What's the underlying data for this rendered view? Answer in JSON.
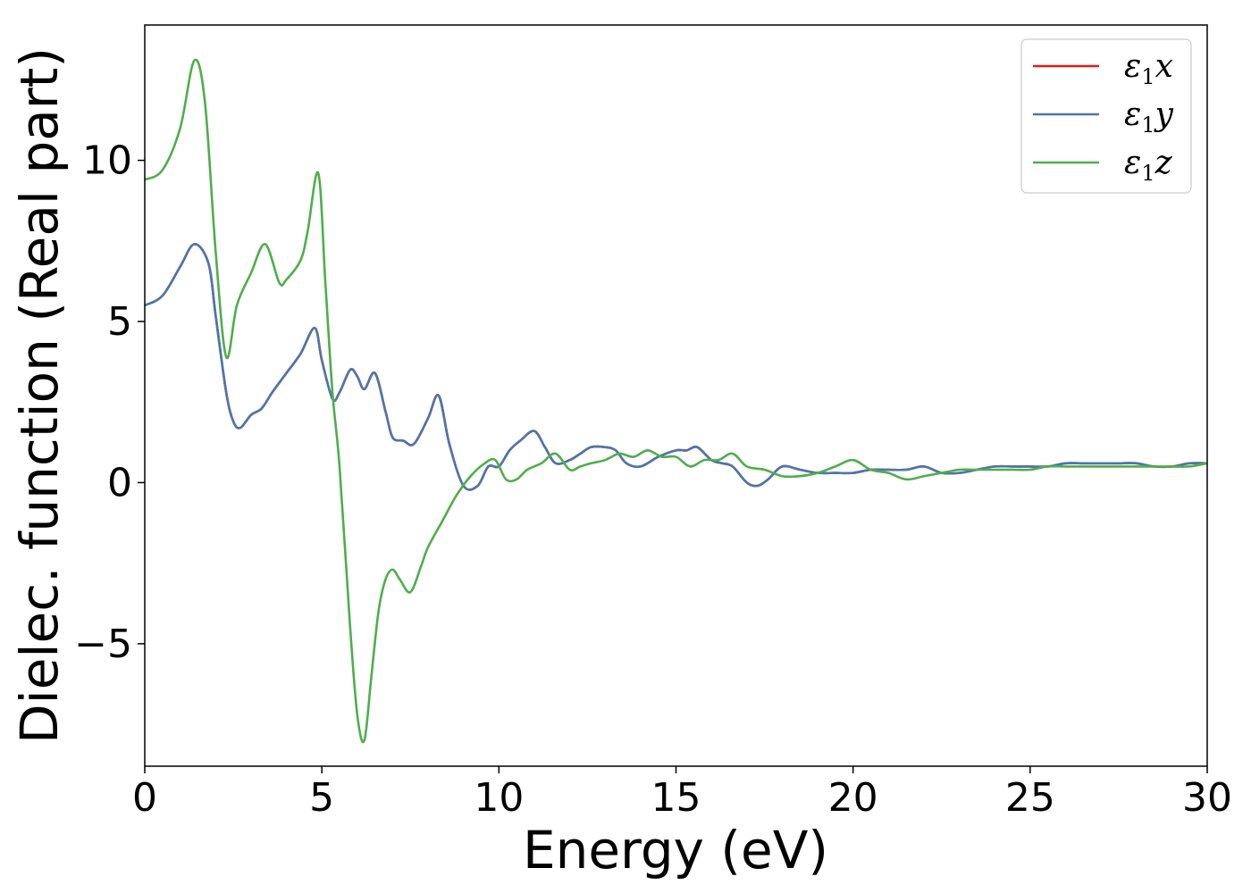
{
  "chart_data": {
    "type": "line",
    "xlabel": "Energy (eV)",
    "ylabel": "Dielec. function (Real part)",
    "xlim": [
      0,
      30
    ],
    "ylim": [
      -8.8,
      14.2
    ],
    "x_ticks": [
      0,
      5,
      10,
      15,
      20,
      25,
      30
    ],
    "y_ticks": [
      -5,
      0,
      5,
      10
    ],
    "x_tick_labels": [
      "0",
      "5",
      "10",
      "15",
      "20",
      "25",
      "30"
    ],
    "y_tick_labels": [
      "−5",
      "0",
      "5",
      "10"
    ],
    "grid": false,
    "legend_position": "top-right",
    "series": [
      {
        "name": "ε1x",
        "legend_main": "ε",
        "legend_sub": "1",
        "legend_var": "x",
        "color": "#e41a1c",
        "x": [
          0,
          0.5,
          1.0,
          1.4,
          1.8,
          2.0,
          2.3,
          2.5,
          2.7,
          3.0,
          3.3,
          3.6,
          4.0,
          4.4,
          4.8,
          5.0,
          5.3,
          5.5,
          5.8,
          6.0,
          6.2,
          6.5,
          6.8,
          7.0,
          7.3,
          7.6,
          8.0,
          8.3,
          8.6,
          9.0,
          9.4,
          9.7,
          10.0,
          10.3,
          10.6,
          11.0,
          11.3,
          11.6,
          12.0,
          12.3,
          12.6,
          13.0,
          13.3,
          13.6,
          14.0,
          14.5,
          15.0,
          15.3,
          15.6,
          16.0,
          16.3,
          16.6,
          17.0,
          17.3,
          17.6,
          18.0,
          18.5,
          19.0,
          19.5,
          20.0,
          20.5,
          21.0,
          21.5,
          22.0,
          22.5,
          23.0,
          23.5,
          24.0,
          24.5,
          25.0,
          25.5,
          26.0,
          26.5,
          27.0,
          27.5,
          28.0,
          28.5,
          29.0,
          29.5,
          30.0
        ],
        "y": [
          5.5,
          5.8,
          6.7,
          7.4,
          6.8,
          5.2,
          2.8,
          1.9,
          1.7,
          2.1,
          2.3,
          2.8,
          3.4,
          4.0,
          4.8,
          3.8,
          2.6,
          2.8,
          3.5,
          3.3,
          2.9,
          3.4,
          2.2,
          1.4,
          1.3,
          1.2,
          2.0,
          2.7,
          1.2,
          -0.1,
          -0.1,
          0.5,
          0.5,
          1.0,
          1.3,
          1.6,
          1.1,
          0.6,
          0.7,
          0.9,
          1.1,
          1.1,
          1.0,
          0.6,
          0.5,
          0.8,
          1.0,
          1.0,
          1.1,
          0.7,
          0.6,
          0.5,
          0.0,
          -0.1,
          0.1,
          0.5,
          0.4,
          0.3,
          0.3,
          0.3,
          0.4,
          0.4,
          0.4,
          0.5,
          0.3,
          0.3,
          0.4,
          0.5,
          0.5,
          0.5,
          0.5,
          0.6,
          0.6,
          0.6,
          0.6,
          0.6,
          0.5,
          0.5,
          0.6,
          0.6
        ]
      },
      {
        "name": "ε1y",
        "legend_main": "ε",
        "legend_sub": "1",
        "legend_var": "y",
        "color": "#4a77ad",
        "x": [
          0,
          0.5,
          1.0,
          1.4,
          1.8,
          2.0,
          2.3,
          2.5,
          2.7,
          3.0,
          3.3,
          3.6,
          4.0,
          4.4,
          4.8,
          5.0,
          5.3,
          5.5,
          5.8,
          6.0,
          6.2,
          6.5,
          6.8,
          7.0,
          7.3,
          7.6,
          8.0,
          8.3,
          8.6,
          9.0,
          9.4,
          9.7,
          10.0,
          10.3,
          10.6,
          11.0,
          11.3,
          11.6,
          12.0,
          12.3,
          12.6,
          13.0,
          13.3,
          13.6,
          14.0,
          14.5,
          15.0,
          15.3,
          15.6,
          16.0,
          16.3,
          16.6,
          17.0,
          17.3,
          17.6,
          18.0,
          18.5,
          19.0,
          19.5,
          20.0,
          20.5,
          21.0,
          21.5,
          22.0,
          22.5,
          23.0,
          23.5,
          24.0,
          24.5,
          25.0,
          25.5,
          26.0,
          26.5,
          27.0,
          27.5,
          28.0,
          28.5,
          29.0,
          29.5,
          30.0
        ],
        "y": [
          5.5,
          5.8,
          6.7,
          7.4,
          6.8,
          5.2,
          2.8,
          1.9,
          1.7,
          2.1,
          2.3,
          2.8,
          3.4,
          4.0,
          4.8,
          3.8,
          2.6,
          2.8,
          3.5,
          3.3,
          2.9,
          3.4,
          2.2,
          1.4,
          1.3,
          1.2,
          2.0,
          2.7,
          1.2,
          -0.1,
          -0.1,
          0.5,
          0.5,
          1.0,
          1.3,
          1.6,
          1.1,
          0.6,
          0.7,
          0.9,
          1.1,
          1.1,
          1.0,
          0.6,
          0.5,
          0.8,
          1.0,
          1.0,
          1.1,
          0.7,
          0.6,
          0.5,
          0.0,
          -0.1,
          0.1,
          0.5,
          0.4,
          0.3,
          0.3,
          0.3,
          0.4,
          0.4,
          0.4,
          0.5,
          0.3,
          0.3,
          0.4,
          0.5,
          0.5,
          0.5,
          0.5,
          0.6,
          0.6,
          0.6,
          0.6,
          0.6,
          0.5,
          0.5,
          0.6,
          0.6
        ]
      },
      {
        "name": "ε1z",
        "legend_main": "ε",
        "legend_sub": "1",
        "legend_var": "z",
        "color": "#4daf4a",
        "x": [
          0,
          0.5,
          1.0,
          1.4,
          1.7,
          2.0,
          2.3,
          2.6,
          3.0,
          3.4,
          3.8,
          4.0,
          4.4,
          4.6,
          4.9,
          5.1,
          5.3,
          5.5,
          5.8,
          6.0,
          6.2,
          6.4,
          6.6,
          6.8,
          7.0,
          7.2,
          7.5,
          7.8,
          8.0,
          8.4,
          8.8,
          9.2,
          9.6,
          9.9,
          10.2,
          10.5,
          10.8,
          11.2,
          11.6,
          12.0,
          12.3,
          12.6,
          13.0,
          13.4,
          13.8,
          14.2,
          14.6,
          15.0,
          15.4,
          15.8,
          16.2,
          16.6,
          17.0,
          17.5,
          18.0,
          18.5,
          19.0,
          19.5,
          20.0,
          20.5,
          21.0,
          21.5,
          22.0,
          22.5,
          23.0,
          23.5,
          24.0,
          24.5,
          25.0,
          25.5,
          26.0,
          26.5,
          27.0,
          27.5,
          28.0,
          28.5,
          29.0,
          29.5,
          30.0
        ],
        "y": [
          9.4,
          9.7,
          11.0,
          13.1,
          11.8,
          7.2,
          3.9,
          5.5,
          6.5,
          7.4,
          6.2,
          6.3,
          6.9,
          7.8,
          9.6,
          6.2,
          2.8,
          0.5,
          -4.5,
          -7.2,
          -8.0,
          -6.0,
          -4.0,
          -3.0,
          -2.7,
          -3.0,
          -3.4,
          -2.6,
          -2.0,
          -1.2,
          -0.4,
          0.2,
          0.6,
          0.7,
          0.1,
          0.1,
          0.4,
          0.6,
          0.9,
          0.4,
          0.5,
          0.6,
          0.7,
          0.9,
          0.8,
          1.0,
          0.8,
          0.8,
          0.5,
          0.7,
          0.7,
          0.9,
          0.5,
          0.4,
          0.2,
          0.2,
          0.3,
          0.5,
          0.7,
          0.4,
          0.3,
          0.1,
          0.2,
          0.3,
          0.4,
          0.4,
          0.4,
          0.4,
          0.4,
          0.5,
          0.5,
          0.5,
          0.5,
          0.5,
          0.5,
          0.5,
          0.5,
          0.5,
          0.6
        ]
      }
    ]
  }
}
